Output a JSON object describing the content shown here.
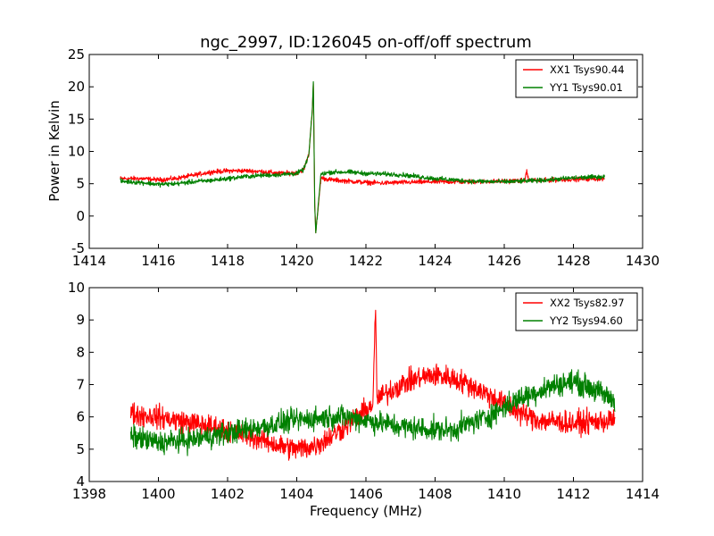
{
  "figure": {
    "title": "ngc_2997, ID:126045 on-off/off spectrum",
    "xlabel": "Frequency (MHz)",
    "ylabel": "Power in Kelvin"
  },
  "chart_data": [
    {
      "type": "line",
      "xlim": [
        1414,
        1430
      ],
      "ylim": [
        -5,
        25
      ],
      "xticks": [
        1414,
        1416,
        1418,
        1420,
        1422,
        1424,
        1426,
        1428,
        1430
      ],
      "yticks": [
        -5,
        0,
        5,
        10,
        15,
        20,
        25
      ],
      "grid": false,
      "legend_position": "top-right",
      "series": [
        {
          "name": "XX1 Tsys90.44",
          "color": "#ff0000",
          "x": [
            1414.9,
            1415.5,
            1416.0,
            1416.5,
            1417.0,
            1417.5,
            1418.0,
            1418.5,
            1419.0,
            1419.5,
            1420.0,
            1420.2,
            1420.35,
            1420.45,
            1420.48,
            1420.52,
            1420.55,
            1420.7,
            1421.0,
            1421.5,
            1422.0,
            1422.5,
            1423.0,
            1424.0,
            1425.0,
            1426.0,
            1426.6,
            1426.65,
            1426.7,
            1427.0,
            1428.0,
            1428.9
          ],
          "y": [
            5.8,
            5.8,
            5.6,
            5.8,
            6.3,
            6.8,
            7.0,
            7.0,
            6.9,
            6.6,
            6.7,
            7.2,
            9.5,
            16.5,
            20.5,
            2.0,
            -2.6,
            5.9,
            5.6,
            5.4,
            5.2,
            5.1,
            5.2,
            5.3,
            5.3,
            5.4,
            5.5,
            7.2,
            5.5,
            5.5,
            5.7,
            5.8
          ]
        },
        {
          "name": "YY1 Tsys90.01",
          "color": "#008000",
          "x": [
            1414.9,
            1415.5,
            1416.0,
            1416.5,
            1417.0,
            1417.5,
            1418.0,
            1418.5,
            1419.0,
            1419.5,
            1420.0,
            1420.2,
            1420.35,
            1420.45,
            1420.48,
            1420.52,
            1420.55,
            1420.7,
            1421.0,
            1421.5,
            1422.0,
            1423.0,
            1424.0,
            1425.0,
            1426.0,
            1427.0,
            1428.0,
            1428.9
          ],
          "y": [
            5.4,
            5.2,
            4.9,
            5.0,
            5.3,
            5.5,
            5.8,
            6.1,
            6.3,
            6.4,
            6.6,
            7.2,
            9.5,
            16.5,
            20.8,
            1.5,
            -2.6,
            6.5,
            6.8,
            6.8,
            6.6,
            6.4,
            5.8,
            5.4,
            5.3,
            5.5,
            5.9,
            6.1
          ]
        }
      ]
    },
    {
      "type": "line",
      "xlim": [
        1398,
        1414
      ],
      "ylim": [
        4,
        10
      ],
      "xticks": [
        1398,
        1400,
        1402,
        1404,
        1406,
        1408,
        1410,
        1412,
        1414
      ],
      "yticks": [
        4,
        5,
        6,
        7,
        8,
        9,
        10
      ],
      "grid": false,
      "legend_position": "top-right",
      "series": [
        {
          "name": "XX2 Tsys82.97",
          "color": "#ff0000",
          "x": [
            1399.2,
            1400.0,
            1401.0,
            1402.0,
            1403.0,
            1403.5,
            1404.0,
            1404.5,
            1405.0,
            1405.5,
            1406.0,
            1406.2,
            1406.28,
            1406.32,
            1406.4,
            1407.0,
            1407.5,
            1408.0,
            1408.5,
            1409.0,
            1409.5,
            1410.0,
            1410.5,
            1411.0,
            1412.0,
            1413.2
          ],
          "y": [
            6.1,
            6.0,
            5.8,
            5.6,
            5.3,
            5.1,
            5.0,
            5.1,
            5.4,
            5.8,
            6.2,
            6.4,
            9.3,
            6.6,
            6.6,
            7.0,
            7.2,
            7.3,
            7.2,
            7.0,
            6.7,
            6.4,
            6.1,
            5.9,
            5.8,
            5.9
          ]
        },
        {
          "name": "YY2 Tsys94.60",
          "color": "#008000",
          "x": [
            1399.2,
            1400.0,
            1401.0,
            1402.0,
            1403.0,
            1404.0,
            1405.0,
            1405.5,
            1406.0,
            1407.0,
            1408.0,
            1408.5,
            1409.0,
            1409.5,
            1410.0,
            1410.5,
            1411.0,
            1411.5,
            1412.0,
            1412.5,
            1413.2
          ],
          "y": [
            5.4,
            5.2,
            5.3,
            5.5,
            5.7,
            5.9,
            6.0,
            6.0,
            5.9,
            5.7,
            5.6,
            5.6,
            5.8,
            6.0,
            6.3,
            6.6,
            6.8,
            7.0,
            7.1,
            6.9,
            6.5
          ]
        }
      ]
    }
  ]
}
